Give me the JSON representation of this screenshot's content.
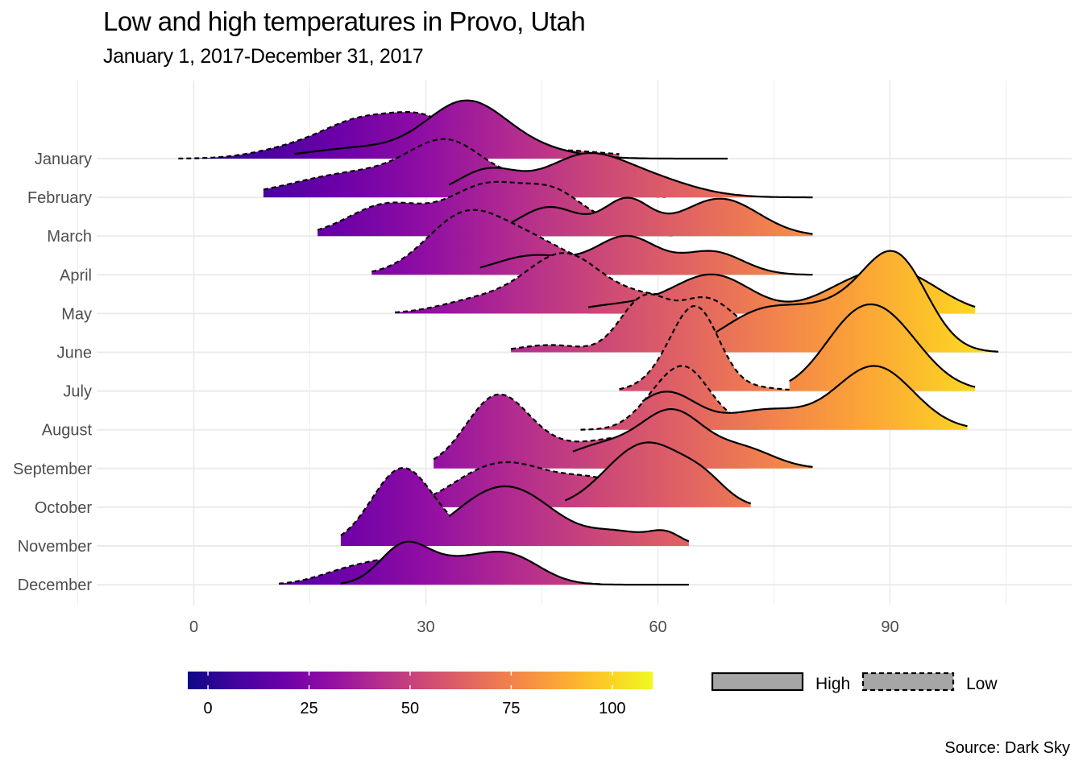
{
  "chart_data": {
    "type": "ridgeline",
    "title": "Low and high temperatures in Provo, Utah",
    "subtitle": "January 1, 2017-December 31, 2017",
    "caption": "Source: Dark Sky",
    "xlim": [
      -12,
      112
    ],
    "x_ticks": [
      0,
      30,
      60,
      90
    ],
    "categories": [
      "January",
      "February",
      "March",
      "April",
      "May",
      "June",
      "July",
      "August",
      "September",
      "October",
      "November",
      "December"
    ],
    "grid": true,
    "fill_scale": {
      "type": "gradient",
      "palette": "plasma",
      "limits": [
        -5,
        110
      ],
      "breaks": [
        0,
        25,
        50,
        75,
        100
      ]
    },
    "line_legend": {
      "entries": [
        {
          "label": "High",
          "linetype": "solid"
        },
        {
          "label": "Low",
          "linetype": "dashed"
        }
      ]
    },
    "series": [
      {
        "name": "High",
        "densities": [
          {
            "month": "January",
            "range": [
              13,
              69
            ],
            "peaks": [
              [
                22,
                0.18,
                7
              ],
              [
                35,
                0.84,
                5
              ],
              [
                42,
                0.18,
                6
              ]
            ]
          },
          {
            "month": "February",
            "range": [
              33,
              80
            ],
            "peaks": [
              [
                38,
                0.45,
                4
              ],
              [
                50,
                0.58,
                5
              ],
              [
                58,
                0.32,
                6
              ]
            ]
          },
          {
            "month": "March",
            "range": [
              38,
              80
            ],
            "peaks": [
              [
                46,
                0.48,
                4
              ],
              [
                56,
                0.58,
                3
              ],
              [
                68,
                0.62,
                5
              ]
            ]
          },
          {
            "month": "April",
            "range": [
              37,
              80
            ],
            "peaks": [
              [
                44,
                0.32,
                5
              ],
              [
                56,
                0.62,
                4
              ],
              [
                67,
                0.38,
                4
              ]
            ]
          },
          {
            "month": "May",
            "range": [
              51,
              101
            ],
            "peaks": [
              [
                55,
                0.14,
                5
              ],
              [
                67,
                0.64,
                5
              ],
              [
                85,
                0.38,
                5
              ],
              [
                92,
                0.55,
                5
              ]
            ]
          },
          {
            "month": "June",
            "range": [
              63,
              104
            ],
            "peaks": [
              [
                73,
                0.58,
                5
              ],
              [
                84,
                0.72,
                6
              ],
              [
                91,
                1.28,
                4
              ]
            ]
          },
          {
            "month": "July",
            "range": [
              77,
              101
            ],
            "peaks": [
              [
                84,
                0.45,
                4
              ],
              [
                89,
                1.18,
                5
              ]
            ]
          },
          {
            "month": "August",
            "range": [
              58,
              100
            ],
            "peaks": [
              [
                61,
                0.62,
                4
              ],
              [
                74,
                0.32,
                5
              ],
              [
                88,
                1.05,
                5
              ]
            ]
          },
          {
            "month": "September",
            "range": [
              49,
              80
            ],
            "peaks": [
              [
                53,
                0.38,
                5
              ],
              [
                62,
                0.88,
                4
              ],
              [
                71,
                0.32,
                4
              ]
            ]
          },
          {
            "month": "October",
            "range": [
              48,
              72
            ],
            "peaks": [
              [
                55,
                0.48,
                4
              ],
              [
                60,
                0.78,
                4
              ],
              [
                66,
                0.38,
                3
              ]
            ]
          },
          {
            "month": "November",
            "range": [
              33,
              64
            ],
            "peaks": [
              [
                37,
                0.56,
                5
              ],
              [
                43,
                0.62,
                5
              ],
              [
                55,
                0.22,
                4
              ],
              [
                61,
                0.18,
                2
              ]
            ]
          },
          {
            "month": "December",
            "range": [
              19,
              64
            ],
            "peaks": [
              [
                27,
                0.52,
                3
              ],
              [
                33,
                0.36,
                5
              ],
              [
                41,
                0.42,
                4
              ]
            ]
          }
        ]
      },
      {
        "name": "Low",
        "densities": [
          {
            "month": "January",
            "range": [
              -2,
              55
            ],
            "peaks": [
              [
                13,
                0.16,
                5
              ],
              [
                22,
                0.6,
                5
              ],
              [
                30,
                0.52,
                4
              ],
              [
                38,
                0.14,
                4
              ],
              [
                46,
                0.14,
                8
              ]
            ]
          },
          {
            "month": "February",
            "range": [
              9,
              61
            ],
            "peaks": [
              [
                21,
                0.4,
                8
              ],
              [
                33,
                0.82,
                5
              ],
              [
                47,
                0.38,
                5
              ]
            ]
          },
          {
            "month": "March",
            "range": [
              16,
              62
            ],
            "peaks": [
              [
                25,
                0.52,
                5
              ],
              [
                38,
                0.82,
                5
              ],
              [
                47,
                0.62,
                4
              ],
              [
                55,
                0.14,
                3
              ]
            ]
          },
          {
            "month": "April",
            "range": [
              23,
              69
            ],
            "peaks": [
              [
                35,
                0.96,
                5
              ],
              [
                44,
                0.48,
                5
              ],
              [
                57,
                0.12,
                5
              ],
              [
                65,
                0.16,
                3
              ]
            ]
          },
          {
            "month": "May",
            "range": [
              26,
              72
            ],
            "peaks": [
              [
                37,
                0.22,
                5
              ],
              [
                48,
                0.98,
                5
              ],
              [
                57,
                0.14,
                3
              ],
              [
                64,
                0.3,
                4
              ]
            ]
          },
          {
            "month": "June",
            "range": [
              41,
              80
            ],
            "peaks": [
              [
                46,
                0.12,
                4
              ],
              [
                58,
                0.82,
                3
              ],
              [
                66,
                0.86,
                4
              ],
              [
                76,
                0.2,
                5
              ]
            ]
          },
          {
            "month": "July",
            "range": [
              55,
              77
            ],
            "peaks": [
              [
                61,
                0.2,
                3
              ],
              [
                65,
                1.32,
                3
              ],
              [
                73,
                0.05,
                3
              ]
            ]
          },
          {
            "month": "August",
            "range": [
              50,
              73
            ],
            "peaks": [
              [
                60,
                0.42,
                3
              ],
              [
                64,
                0.84,
                3
              ],
              [
                70,
                0.1,
                3
              ]
            ]
          },
          {
            "month": "September",
            "range": [
              31,
              72
            ],
            "peaks": [
              [
                39,
                1.08,
                4
              ],
              [
                45,
                0.28,
                5
              ],
              [
                55,
                0.4,
                5
              ],
              [
                63,
                0.28,
                5
              ]
            ]
          },
          {
            "month": "October",
            "range": [
              30,
              63
            ],
            "peaks": [
              [
                35,
                0.2,
                4
              ],
              [
                41,
                0.64,
                5
              ],
              [
                52,
                0.44,
                5
              ]
            ]
          },
          {
            "month": "November",
            "range": [
              19,
              56
            ],
            "peaks": [
              [
                27,
                1.28,
                4
              ],
              [
                36,
                0.14,
                4
              ],
              [
                48,
                0.1,
                4
              ]
            ]
          },
          {
            "month": "December",
            "range": [
              11,
              53
            ],
            "peaks": [
              [
                20,
                0.22,
                4
              ],
              [
                27,
                0.36,
                4
              ],
              [
                36,
                0.14,
                5
              ],
              [
                47,
                0.05,
                3
              ]
            ]
          }
        ]
      }
    ]
  }
}
